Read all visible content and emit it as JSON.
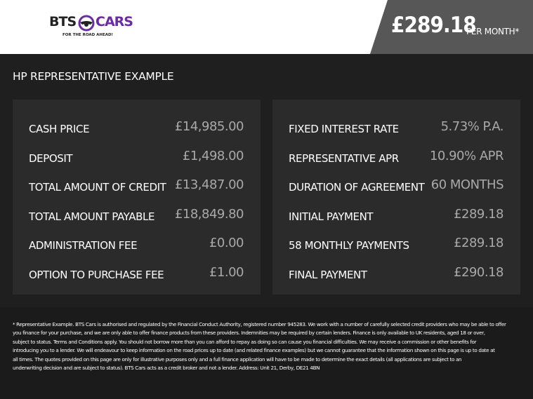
{
  "header": {
    "logo_text_left": "BTS",
    "logo_text_right": "CARS",
    "logo_tagline": "FOR THE ROAD AHEAD!",
    "monthly_price": "£289.18",
    "per_month_label": "PER MONTH*"
  },
  "colors": {
    "brand_purple": "#6a2ca0",
    "panel_grey": "#575757"
  },
  "title": "HP REPRESENTATIVE EXAMPLE",
  "left_panel": [
    {
      "label": "CASH PRICE",
      "value": "£14,985.00"
    },
    {
      "label": "DEPOSIT",
      "value": "£1,498.00"
    },
    {
      "label": "TOTAL AMOUNT OF CREDIT",
      "value": "£13,487.00"
    },
    {
      "label": "TOTAL AMOUNT PAYABLE",
      "value": "£18,849.80"
    },
    {
      "label": "ADMINISTRATION FEE",
      "value": "£0.00"
    },
    {
      "label": "OPTION TO PURCHASE FEE",
      "value": "£1.00"
    }
  ],
  "right_panel": [
    {
      "label": "FIXED INTEREST RATE",
      "value": "5.73% P.A."
    },
    {
      "label": "REPRESENTATIVE APR",
      "value": "10.90% APR"
    },
    {
      "label": "DURATION OF AGREEMENT",
      "value": "60 MONTHS"
    },
    {
      "label": "INITIAL PAYMENT",
      "value": "£289.18"
    },
    {
      "label": "58 MONTHLY PAYMENTS",
      "value": "£289.18"
    },
    {
      "label": "FINAL PAYMENT",
      "value": "£290.18"
    }
  ],
  "disclaimer": [
    "* Representative Example. BTS Cars is authorised and regulated by the Financial Conduct Authority, registered number 945283. We work with a number of carefully selected credit providers who may be able to offer",
    "you finance for your purchase, and we are only able to offer finance products from these providers. Indemnities may be required by certain lenders. Finance is only available to UK residents, aged 18 or over,",
    "subject to status. Terms and Conditions apply. You should not borrow more than you can afford to repay as doing so can cause you financial difficulties. We may receive a commission or other benefits for",
    "introducing you to a lender. We will endeavour to keep information on the road prices up to date (and related finance examples) but we cannot guarantee that the information shown on this page is up to date at",
    "all times. The quotes provided on this page are only for illustrative purposes only and a full finance application will have to be made to determine the exact details (all applications are subject to an",
    "underwriting decision and are subject to status). BTS Cars acts as a credit broker and not a lender. Address: Unit 21, Derby, DE21 4BN"
  ]
}
